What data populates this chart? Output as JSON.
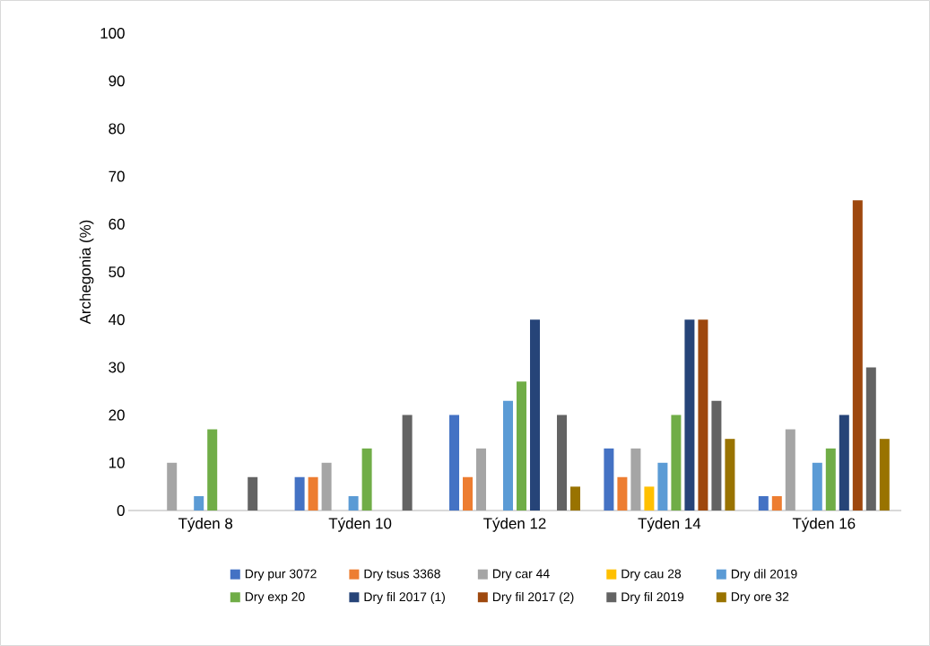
{
  "chart_data": {
    "type": "bar",
    "ylabel": "Archegonia (%)",
    "categories": [
      "Týden 8",
      "Týden 10",
      "Týden 12",
      "Týden 14",
      "Týden 16"
    ],
    "ylim": [
      0,
      100
    ],
    "yticks": [
      0,
      10,
      20,
      30,
      40,
      50,
      60,
      70,
      80,
      90,
      100
    ],
    "legend": "bottom",
    "series": [
      {
        "name": "Dry pur 3072",
        "color": "#4472c4",
        "values": [
          0,
          7,
          20,
          13,
          3
        ]
      },
      {
        "name": "Dry tsus 3368",
        "color": "#ed7d31",
        "values": [
          0,
          7,
          7,
          7,
          3
        ]
      },
      {
        "name": "Dry car 44",
        "color": "#a5a5a5",
        "values": [
          10,
          10,
          13,
          13,
          17
        ]
      },
      {
        "name": "Dry cau 28",
        "color": "#ffc000",
        "values": [
          0,
          0,
          0,
          5,
          0
        ]
      },
      {
        "name": "Dry dil 2019",
        "color": "#5b9bd5",
        "values": [
          3,
          3,
          23,
          10,
          10
        ]
      },
      {
        "name": "Dry exp 20",
        "color": "#70ad47",
        "values": [
          17,
          13,
          27,
          20,
          13
        ]
      },
      {
        "name": "Dry fil 2017 (1)",
        "color": "#264478",
        "values": [
          0,
          0,
          40,
          40,
          20
        ]
      },
      {
        "name": "Dry fil 2017 (2)",
        "color": "#9e480e",
        "values": [
          0,
          0,
          0,
          40,
          65
        ]
      },
      {
        "name": "Dry fil 2019",
        "color": "#636363",
        "values": [
          7,
          20,
          20,
          23,
          30
        ]
      },
      {
        "name": "Dry ore 32",
        "color": "#997300",
        "values": [
          0,
          0,
          5,
          15,
          15
        ]
      }
    ]
  }
}
